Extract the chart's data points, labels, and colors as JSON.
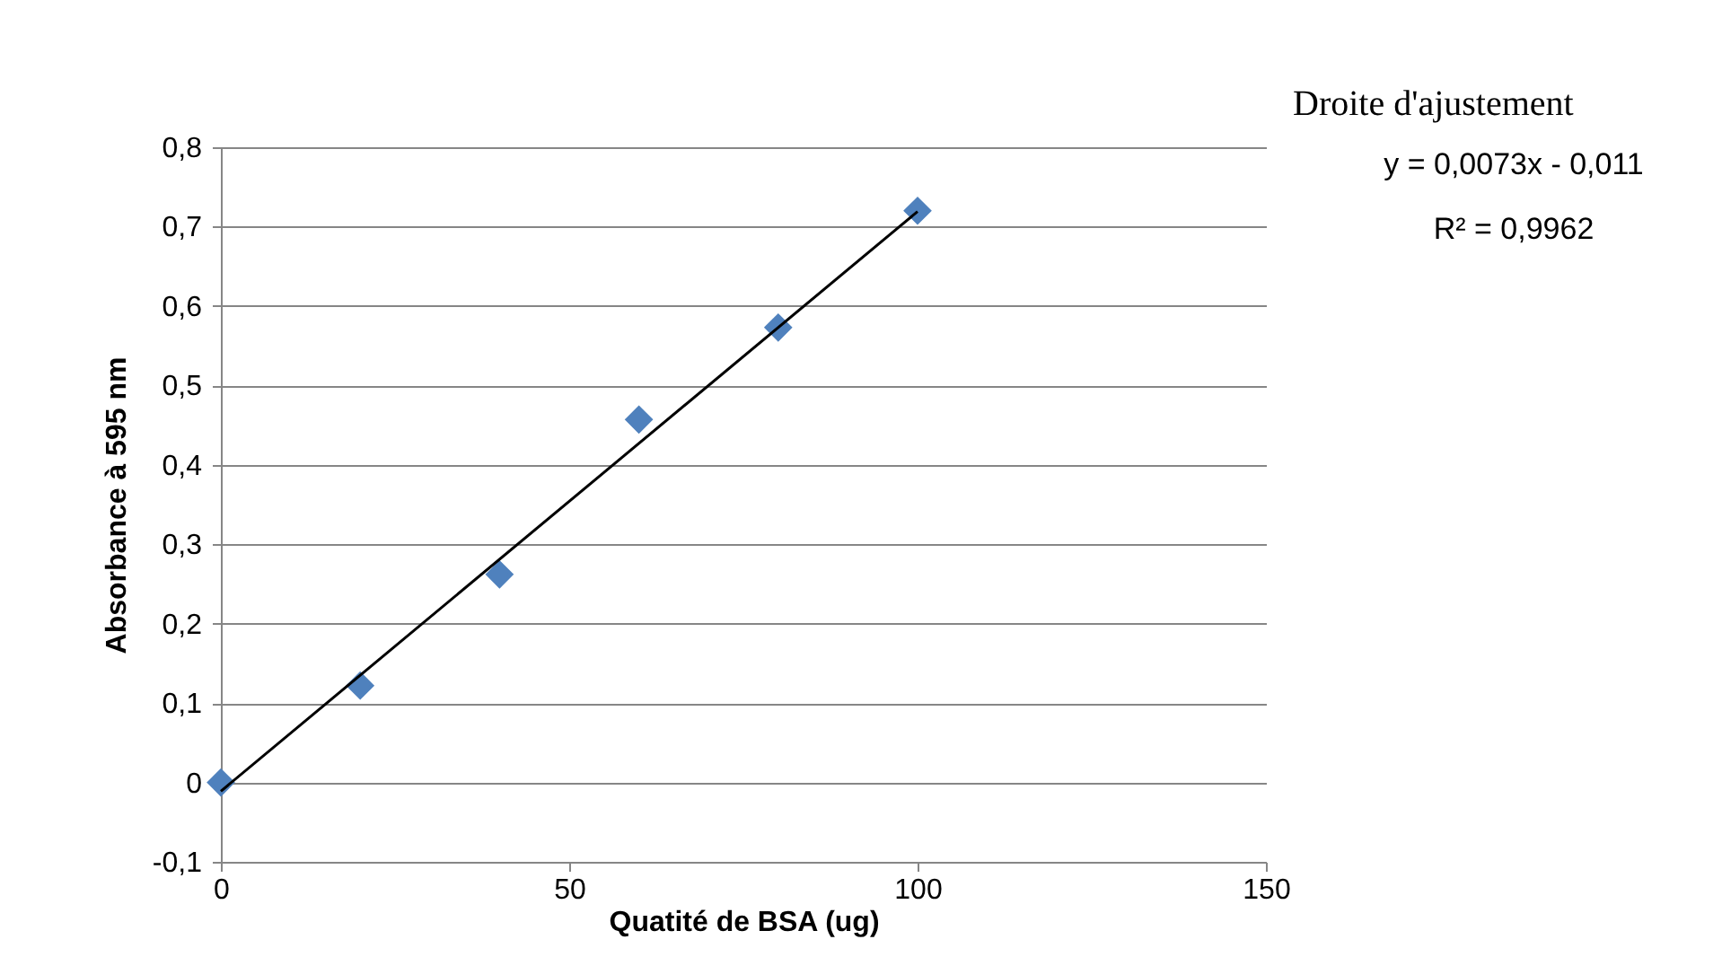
{
  "chart_data": {
    "type": "scatter",
    "xlabel": "Quatité de BSA (ug)",
    "ylabel": "Absorbance à 595 nm",
    "x": [
      0,
      20,
      40,
      60,
      80,
      100
    ],
    "series": [
      {
        "color": "#4f81bd",
        "marker": "diamond",
        "values": [
          0,
          0.122,
          0.262,
          0.457,
          0.573,
          0.72
        ]
      },
      {
        "type": "line",
        "color": "#000000",
        "x": [
          0,
          100
        ],
        "values": [
          -0.011,
          0.719
        ]
      }
    ],
    "xlim": [
      0,
      150
    ],
    "xticks": [
      0,
      50,
      100,
      150
    ],
    "ylim": [
      -0.1,
      0.8
    ],
    "yticks": [
      {
        "value": -0.1,
        "label": "-0,1"
      },
      {
        "value": 0,
        "label": "0"
      },
      {
        "value": 0.1,
        "label": "0,1"
      },
      {
        "value": 0.2,
        "label": "0,2"
      },
      {
        "value": 0.3,
        "label": "0,3"
      },
      {
        "value": 0.4,
        "label": "0,4"
      },
      {
        "value": 0.5,
        "label": "0,5"
      },
      {
        "value": 0.6,
        "label": "0,6"
      },
      {
        "value": 0.7,
        "label": "0,7"
      },
      {
        "value": 0.8,
        "label": "0,8"
      }
    ],
    "grid": "y",
    "annotations": [
      "Droite d'ajustement",
      "y = 0,0073x - 0,011",
      "R² = 0,9962"
    ]
  }
}
